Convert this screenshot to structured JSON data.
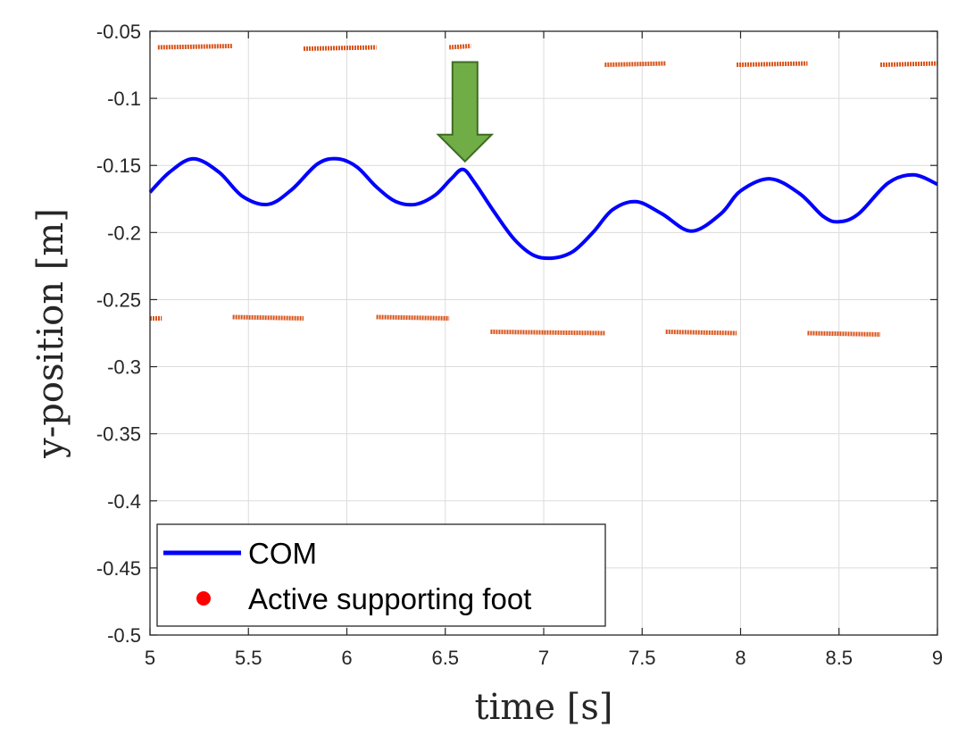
{
  "chart_data": {
    "type": "line",
    "title": "",
    "xlabel": "time [s]",
    "ylabel": "y-position [m]",
    "xlim": [
      5,
      9
    ],
    "ylim": [
      -0.5,
      -0.05
    ],
    "xticks": [
      5,
      5.5,
      6,
      6.5,
      7,
      7.5,
      8,
      8.5,
      9
    ],
    "xtick_labels": [
      "5",
      "5.5",
      "6",
      "6.5",
      "7",
      "7.5",
      "8",
      "8.5",
      "9"
    ],
    "yticks": [
      -0.05,
      -0.1,
      -0.15,
      -0.2,
      -0.25,
      -0.3,
      -0.35,
      -0.4,
      -0.45,
      -0.5
    ],
    "ytick_labels": [
      "-0.05",
      "-0.1",
      "-0.15",
      "-0.2",
      "-0.25",
      "-0.3",
      "-0.35",
      "-0.4",
      "-0.45",
      "-0.5"
    ],
    "grid": true,
    "legend_position": "bottom-left",
    "legend": [
      "COM",
      "Active supporting foot"
    ],
    "series": [
      {
        "name": "COM",
        "kind": "line",
        "color": "#0000ff",
        "x": [
          5.0,
          5.1,
          5.22,
          5.35,
          5.47,
          5.6,
          5.72,
          5.85,
          5.95,
          6.05,
          6.15,
          6.25,
          6.35,
          6.45,
          6.53,
          6.59,
          6.65,
          6.75,
          6.85,
          6.95,
          7.05,
          7.15,
          7.25,
          7.35,
          7.47,
          7.6,
          7.75,
          7.9,
          8.0,
          8.15,
          8.3,
          8.42,
          8.5,
          8.6,
          8.75,
          8.88,
          9.0
        ],
        "y": [
          -0.17,
          -0.155,
          -0.145,
          -0.155,
          -0.173,
          -0.179,
          -0.168,
          -0.149,
          -0.145,
          -0.151,
          -0.166,
          -0.177,
          -0.179,
          -0.172,
          -0.16,
          -0.153,
          -0.163,
          -0.185,
          -0.205,
          -0.217,
          -0.219,
          -0.214,
          -0.2,
          -0.183,
          -0.177,
          -0.186,
          -0.199,
          -0.186,
          -0.169,
          -0.16,
          -0.171,
          -0.188,
          -0.192,
          -0.186,
          -0.163,
          -0.157,
          -0.164
        ]
      },
      {
        "name": "Active supporting foot",
        "kind": "segments",
        "color": "#d95319",
        "segments": [
          {
            "x": [
              5.04,
              5.42
            ],
            "y": [
              -0.062,
              -0.061
            ]
          },
          {
            "x": [
              5.78,
              6.15
            ],
            "y": [
              -0.063,
              -0.062
            ]
          },
          {
            "x": [
              6.52,
              6.63
            ],
            "y": [
              -0.062,
              -0.061
            ]
          },
          {
            "x": [
              7.31,
              7.62
            ],
            "y": [
              -0.075,
              -0.074
            ]
          },
          {
            "x": [
              7.98,
              8.34
            ],
            "y": [
              -0.075,
              -0.074
            ]
          },
          {
            "x": [
              8.71,
              9.0
            ],
            "y": [
              -0.075,
              -0.074
            ]
          },
          {
            "x": [
              5.0,
              5.06
            ],
            "y": [
              -0.264,
              -0.264
            ]
          },
          {
            "x": [
              5.42,
              5.78
            ],
            "y": [
              -0.263,
              -0.264
            ]
          },
          {
            "x": [
              6.15,
              6.52
            ],
            "y": [
              -0.263,
              -0.264
            ]
          },
          {
            "x": [
              6.73,
              7.31
            ],
            "y": [
              -0.274,
              -0.275
            ]
          },
          {
            "x": [
              7.62,
              7.98
            ],
            "y": [
              -0.274,
              -0.275
            ]
          },
          {
            "x": [
              8.34,
              8.71
            ],
            "y": [
              -0.275,
              -0.276
            ]
          }
        ]
      }
    ],
    "annotations": [
      {
        "type": "arrow",
        "direction": "down",
        "x": 6.6,
        "y_start": -0.073,
        "y_end": -0.147,
        "color": "#70ad47"
      }
    ]
  }
}
